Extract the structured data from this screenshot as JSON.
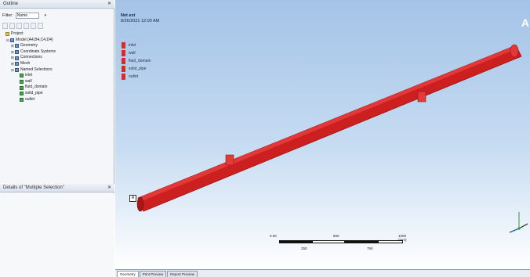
{
  "outline": {
    "title": "Outline",
    "pin": "✕",
    "filter_label": "Filter:",
    "filter_value": "Name",
    "filter_dropdown": "▾",
    "tree": [
      {
        "label": "Project",
        "indent": 0,
        "icon": "folder",
        "expander": ""
      },
      {
        "label": "Model (A4,B4,C4,D4)",
        "indent": 1,
        "icon": "blue",
        "expander": "⊟"
      },
      {
        "label": "Geometry",
        "indent": 2,
        "icon": "blue",
        "expander": "⊞"
      },
      {
        "label": "Coordinate Systems",
        "indent": 2,
        "icon": "blue",
        "expander": "⊞"
      },
      {
        "label": "Connections",
        "indent": 2,
        "icon": "blue",
        "expander": "⊞"
      },
      {
        "label": "Mesh",
        "indent": 2,
        "icon": "blue",
        "expander": "⊞"
      },
      {
        "label": "Named Selections",
        "indent": 2,
        "icon": "blue",
        "expander": "⊟"
      },
      {
        "label": "inlet",
        "indent": 3,
        "icon": "green",
        "expander": ""
      },
      {
        "label": "wall",
        "indent": 3,
        "icon": "green",
        "expander": ""
      },
      {
        "label": "fluid_domain",
        "indent": 3,
        "icon": "green",
        "expander": ""
      },
      {
        "label": "solid_pipe",
        "indent": 3,
        "icon": "green",
        "expander": ""
      },
      {
        "label": "outlet",
        "indent": 3,
        "icon": "green",
        "expander": ""
      }
    ]
  },
  "details": {
    "title": "Details of \"Multiple Selection\"",
    "pin": "✕"
  },
  "viewport": {
    "title_line1": "Net ext",
    "title_line2": "8/26/2021 12:00 AM",
    "corner_letter": "A",
    "a_marker": "A",
    "legend": [
      "inlet",
      "wall",
      "fluid_domain",
      "solid_pipe",
      "outlet"
    ],
    "scale": {
      "top_left": "0.00",
      "top_mid": "500",
      "top_right": "1000 (mm)",
      "bottom_left": "250",
      "bottom_right": "750"
    },
    "colors": {
      "beam": "#cc1f1f",
      "beam_dark": "#a81616",
      "beam_light": "#e23838"
    }
  },
  "tabs": [
    "Geometry",
    "Print Preview",
    "Report Preview"
  ]
}
